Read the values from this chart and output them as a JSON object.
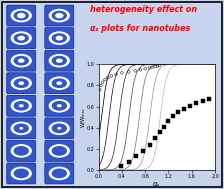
{
  "title_line1": "heterogeneity effect on",
  "title_line2": "αₛ plots for nanotubes",
  "title_color": "#ff0000",
  "xlabel": "αₛ",
  "ylabel": "W/Wₘₐₓ",
  "xlim": [
    0,
    2.0
  ],
  "ylim": [
    0,
    1.0
  ],
  "xticks": [
    0,
    0.4,
    0.8,
    1.2,
    1.6,
    2.0
  ],
  "yticks": [
    0,
    0.2,
    0.4,
    0.6,
    0.8,
    1.0
  ],
  "bg_color": "#ffffff",
  "outer_bg": "#c8d4ee",
  "curve_shifts": [
    0.05,
    0.18,
    0.35,
    0.52,
    0.7,
    0.88,
    1.06
  ],
  "curve_grays": [
    "#000000",
    "#1a1a1a",
    "#333333",
    "#555555",
    "#777777",
    "#999999",
    "#bbbbbb"
  ],
  "scatter_open_x": [
    0.02,
    0.04,
    0.07,
    0.11,
    0.16,
    0.22,
    0.3,
    0.4,
    0.52,
    0.63,
    0.72,
    0.8,
    0.87,
    0.92,
    0.97,
    1.01,
    1.04
  ],
  "scatter_open_y": [
    0.76,
    0.8,
    0.83,
    0.855,
    0.875,
    0.89,
    0.905,
    0.918,
    0.928,
    0.938,
    0.948,
    0.958,
    0.965,
    0.972,
    0.978,
    0.984,
    0.989
  ],
  "scatter_filled_x": [
    0.38,
    0.52,
    0.65,
    0.77,
    0.88,
    0.97,
    1.05,
    1.12,
    1.19,
    1.27,
    1.36,
    1.46,
    1.57,
    1.68,
    1.8,
    1.9
  ],
  "scatter_filled_y": [
    0.04,
    0.08,
    0.13,
    0.18,
    0.24,
    0.3,
    0.36,
    0.41,
    0.46,
    0.51,
    0.55,
    0.58,
    0.61,
    0.63,
    0.65,
    0.67
  ],
  "nanotube_blue": "#3355cc",
  "nanotube_dark": "#1133aa",
  "nanotube_white": "#ffffff",
  "border_color": "#000000"
}
